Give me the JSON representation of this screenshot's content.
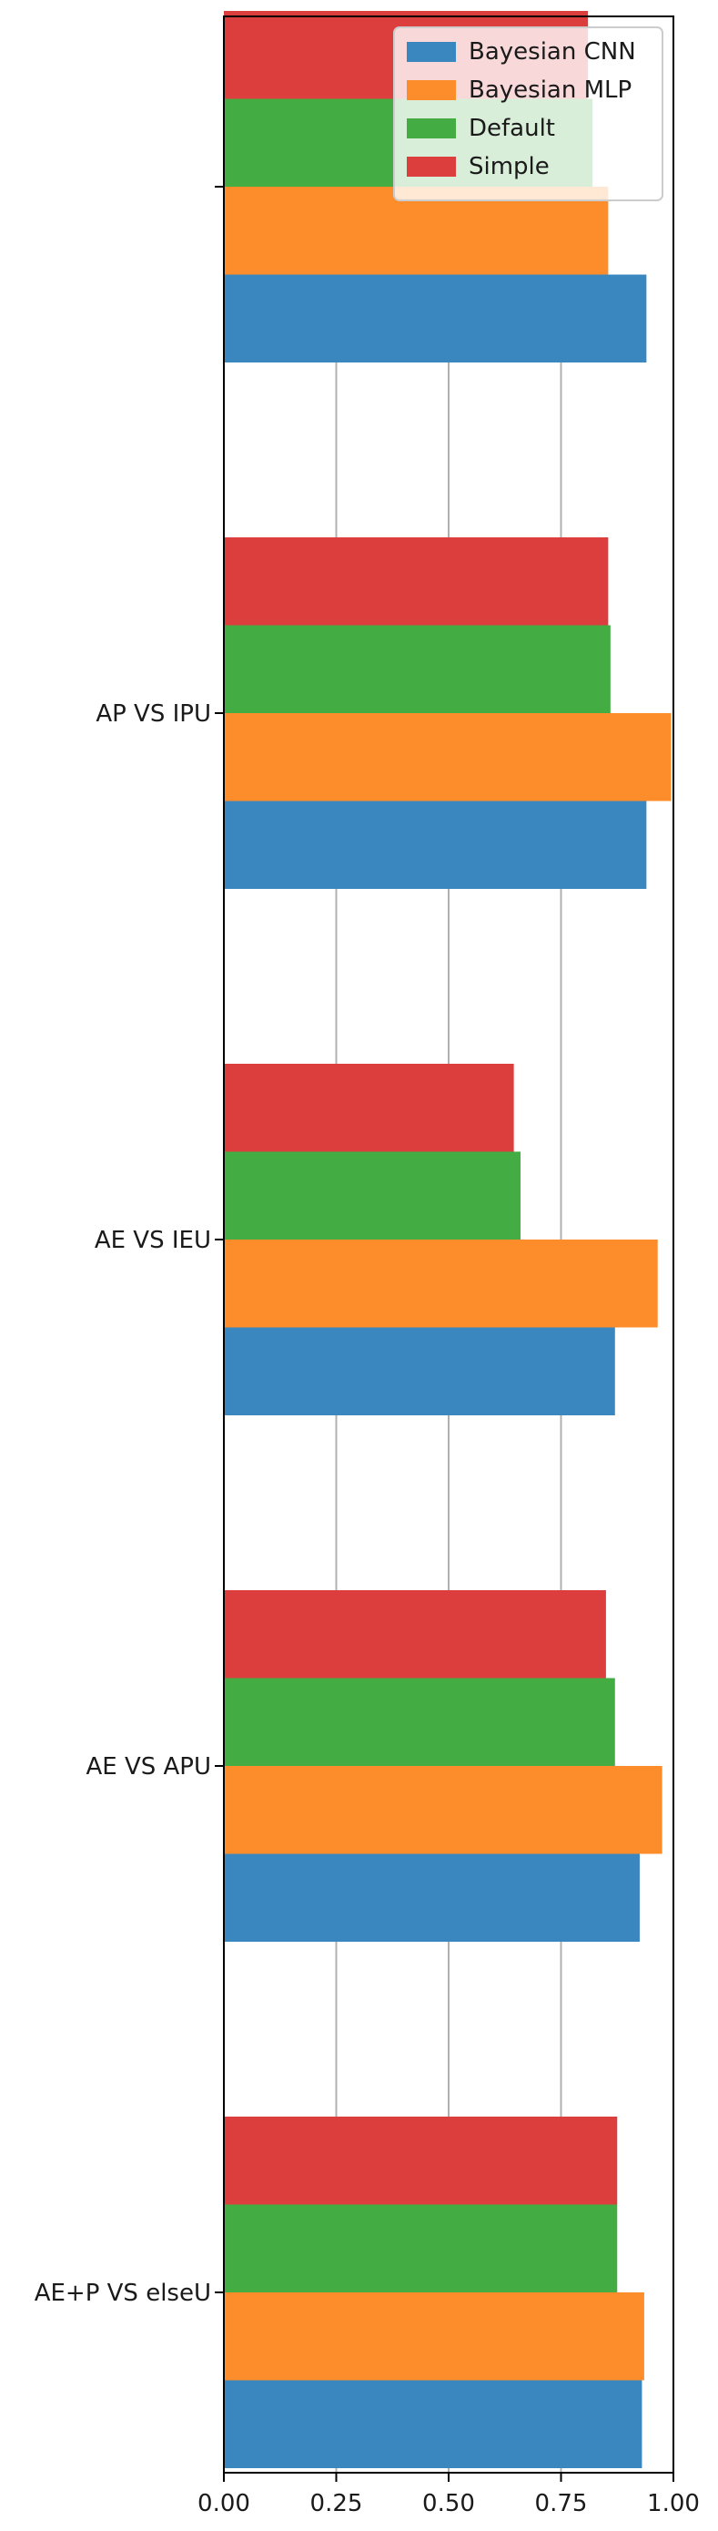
{
  "chart_data": {
    "type": "bar",
    "orientation": "horizontal",
    "categories": [
      "AE+P VS else",
      "AE VS AP",
      "AE VS IE",
      "AP VS IP",
      ""
    ],
    "category_suffix": "U",
    "series": [
      {
        "name": "Bayesian CNN",
        "color": "#3a87c0",
        "values": [
          0.93,
          0.925,
          0.87,
          0.94,
          0.94
        ]
      },
      {
        "name": "Bayesian MLP",
        "color": "#fd8c2a",
        "values": [
          0.935,
          0.975,
          0.965,
          0.995,
          0.855
        ]
      },
      {
        "name": "Default",
        "color": "#43ac43",
        "values": [
          0.875,
          0.87,
          0.66,
          0.86,
          0.82
        ]
      },
      {
        "name": "Simple",
        "color": "#dc3e3e",
        "values": [
          0.875,
          0.85,
          0.645,
          0.855,
          0.81
        ]
      }
    ],
    "xlim": [
      0,
      1.0
    ],
    "xticks": [
      "0.00",
      "0.25",
      "0.50",
      "0.75",
      "1.00"
    ],
    "xtick_values": [
      0,
      0.25,
      0.5,
      0.75,
      1.0
    ],
    "grid": "vertical",
    "legend": "top-right",
    "title": "",
    "xlabel": "",
    "ylabel": ""
  }
}
